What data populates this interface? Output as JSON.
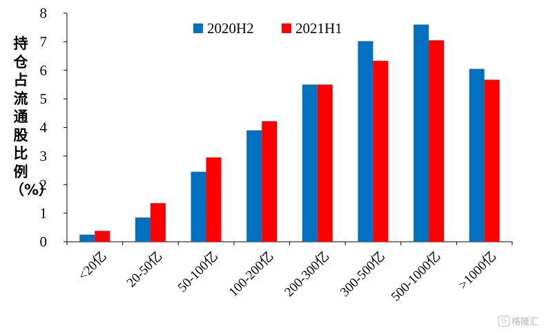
{
  "chart_data": {
    "type": "bar",
    "categories": [
      "<20亿",
      "20-50亿",
      "50-100亿",
      "100-200亿",
      "200-300亿",
      "300-500亿",
      "500-1000亿",
      ">1000亿"
    ],
    "series": [
      {
        "name": "2020H2",
        "color": "#0070c0",
        "values": [
          0.25,
          0.85,
          2.45,
          3.9,
          5.5,
          7.02,
          7.6,
          6.05
        ]
      },
      {
        "name": "2021H1",
        "color": "#ff0000",
        "values": [
          0.38,
          1.35,
          2.95,
          4.22,
          5.5,
          6.33,
          7.05,
          5.67
        ]
      }
    ],
    "ylabel": "持仓占流通股比例（%）",
    "ylim": [
      0,
      8
    ],
    "yticks": [
      0,
      1,
      2,
      3,
      4,
      5,
      6,
      7,
      8
    ],
    "grid": false,
    "legend": "top-center"
  },
  "watermark": {
    "text": "格隆汇"
  }
}
